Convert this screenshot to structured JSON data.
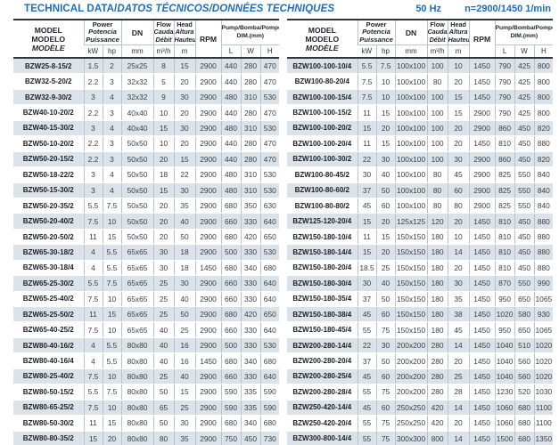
{
  "page": {
    "title_main": "TECHNICAL DATA/",
    "title_rest": "DATOS TÉCNICOS/DONNÉES TECHNIQUES",
    "frequency": "50 Hz",
    "speed": "n=2900/1450 1/min"
  },
  "colors": {
    "accent_blue": "#1f6db6",
    "row_shade": "#dbe2e8",
    "border_dark": "#2e3640",
    "border_light": "#b9c3cd"
  },
  "table_header": {
    "model_line1": "MODEL",
    "model_line2": "MODELO",
    "model_line3": "MODÈLE",
    "power_line1": "Power",
    "power_line2": "Potencia",
    "power_line3": "Puissance",
    "dn": "DN",
    "flow_line1": "Flow",
    "flow_line2": "Caudal",
    "flow_line3": "Débit",
    "head_line1": "Head",
    "head_line2": "Altura",
    "head_line3": "Hauteur",
    "rpm": "RPM",
    "dim_line1": "Pump/Bomba/Pompe",
    "dim_line2": "DIM.(mm)",
    "unit_kw": "kW",
    "unit_hp": "hp",
    "unit_dn": "mm",
    "unit_flow": "m³/h",
    "unit_head": "m",
    "unit_l": "L",
    "unit_w": "W",
    "unit_h": "H"
  },
  "left_table": {
    "rows": [
      [
        "BZW25-8-15/2",
        "1.5",
        "2",
        "25x25",
        "8",
        "15",
        "2900",
        "440",
        "280",
        "470"
      ],
      [
        "BZW32-5-20/2",
        "2.2",
        "3",
        "32x32",
        "5",
        "20",
        "2900",
        "440",
        "280",
        "470"
      ],
      [
        "BZW32-9-30/2",
        "3",
        "4",
        "32x32",
        "9",
        "30",
        "2900",
        "480",
        "310",
        "530"
      ],
      [
        "BZW40-10-20/2",
        "2.2",
        "3",
        "40x40",
        "10",
        "20",
        "2900",
        "440",
        "280",
        "470"
      ],
      [
        "BZW40-15-30/2",
        "3",
        "4",
        "40x40",
        "15",
        "30",
        "2900",
        "480",
        "310",
        "530"
      ],
      [
        "BZW50-10-20/2",
        "2.2",
        "3",
        "50x50",
        "10",
        "20",
        "2900",
        "440",
        "280",
        "470"
      ],
      [
        "BZW50-20-15/2",
        "2.2",
        "3",
        "50x50",
        "20",
        "15",
        "2900",
        "440",
        "280",
        "470"
      ],
      [
        "BZW50-18-22/2",
        "3",
        "4",
        "50x50",
        "18",
        "22",
        "2900",
        "480",
        "310",
        "530"
      ],
      [
        "BZW50-15-30/2",
        "3",
        "4",
        "50x50",
        "15",
        "30",
        "2900",
        "480",
        "310",
        "530"
      ],
      [
        "BZW50-20-35/2",
        "5.5",
        "7.5",
        "50x50",
        "20",
        "35",
        "2900",
        "680",
        "350",
        "630"
      ],
      [
        "BZW50-20-40/2",
        "7.5",
        "10",
        "50x50",
        "20",
        "40",
        "2900",
        "660",
        "330",
        "640"
      ],
      [
        "BZW50-20-50/2",
        "11",
        "15",
        "50x50",
        "20",
        "50",
        "2900",
        "680",
        "420",
        "650"
      ],
      [
        "BZW65-30-18/2",
        "4",
        "5.5",
        "65x65",
        "30",
        "18",
        "2900",
        "500",
        "330",
        "530"
      ],
      [
        "BZW65-30-18/4",
        "4",
        "5.5",
        "65x65",
        "30",
        "18",
        "1450",
        "680",
        "340",
        "680"
      ],
      [
        "BZW65-25-30/2",
        "5.5",
        "7.5",
        "65x65",
        "25",
        "30",
        "2900",
        "660",
        "330",
        "640"
      ],
      [
        "BZW65-25-40/2",
        "7.5",
        "10",
        "65x65",
        "25",
        "40",
        "2900",
        "660",
        "330",
        "640"
      ],
      [
        "BZW65-25-50/2",
        "11",
        "15",
        "65x65",
        "25",
        "50",
        "2900",
        "680",
        "420",
        "650"
      ],
      [
        "BZW65-40-25/2",
        "7.5",
        "10",
        "65x65",
        "40",
        "25",
        "2900",
        "660",
        "330",
        "640"
      ],
      [
        "BZW80-40-16/2",
        "4",
        "5.5",
        "80x80",
        "40",
        "16",
        "2900",
        "500",
        "330",
        "530"
      ],
      [
        "BZW80-40-16/4",
        "4",
        "5.5",
        "80x80",
        "40",
        "16",
        "1450",
        "680",
        "340",
        "680"
      ],
      [
        "BZW80-25-40/2",
        "7.5",
        "10",
        "80x80",
        "25",
        "40",
        "2900",
        "660",
        "330",
        "640"
      ],
      [
        "BZW80-50-15/2",
        "5.5",
        "7.5",
        "80x80",
        "50",
        "15",
        "2900",
        "590",
        "335",
        "590"
      ],
      [
        "BZW80-65-25/2",
        "7.5",
        "10",
        "80x80",
        "65",
        "25",
        "2900",
        "590",
        "335",
        "590"
      ],
      [
        "BZW80-50-30/2",
        "11",
        "15",
        "80x80",
        "50",
        "30",
        "2900",
        "680",
        "340",
        "680"
      ],
      [
        "BZW80-80-35/2",
        "15",
        "20",
        "80x80",
        "80",
        "35",
        "2900",
        "750",
        "450",
        "730"
      ],
      [
        "BZW80-50-60/2",
        "22",
        "30",
        "80x80",
        "50",
        "60",
        "2900",
        "720",
        "430",
        "700"
      ]
    ]
  },
  "right_table": {
    "rows": [
      [
        "BZW100-100-10/4",
        "5.5",
        "7.5",
        "100x100",
        "100",
        "10",
        "1450",
        "790",
        "425",
        "800"
      ],
      [
        "BZW100-80-20/4",
        "7.5",
        "10",
        "100x100",
        "80",
        "20",
        "1450",
        "790",
        "425",
        "800"
      ],
      [
        "BZW100-100-15/4",
        "7.5",
        "10",
        "100x100",
        "100",
        "15",
        "1450",
        "790",
        "425",
        "800"
      ],
      [
        "BZW100-100-15/2",
        "11",
        "15",
        "100x100",
        "100",
        "15",
        "2900",
        "790",
        "425",
        "800"
      ],
      [
        "BZW100-100-20/2",
        "15",
        "20",
        "100x100",
        "100",
        "20",
        "2900",
        "860",
        "450",
        "820"
      ],
      [
        "BZW100-100-20/4",
        "11",
        "15",
        "100x100",
        "100",
        "20",
        "1450",
        "810",
        "450",
        "880"
      ],
      [
        "BZW100-100-30/2",
        "22",
        "30",
        "100x100",
        "100",
        "30",
        "2900",
        "860",
        "450",
        "820"
      ],
      [
        "BZW100-80-45/2",
        "30",
        "40",
        "100x100",
        "80",
        "45",
        "2900",
        "825",
        "550",
        "840"
      ],
      [
        "BZW100-80-60/2",
        "37",
        "50",
        "100x100",
        "80",
        "60",
        "2900",
        "825",
        "550",
        "840"
      ],
      [
        "BZW100-80-80/2",
        "45",
        "60",
        "100x100",
        "80",
        "80",
        "2900",
        "825",
        "550",
        "840"
      ],
      [
        "BZW125-120-20/4",
        "15",
        "20",
        "125x125",
        "120",
        "20",
        "1450",
        "810",
        "450",
        "880"
      ],
      [
        "BZW150-180-10/4",
        "11",
        "15",
        "150x150",
        "180",
        "10",
        "1450",
        "810",
        "450",
        "880"
      ],
      [
        "BZW150-180-14/4",
        "15",
        "20",
        "150x150",
        "180",
        "14",
        "1450",
        "810",
        "450",
        "880"
      ],
      [
        "BZW150-180-20/4",
        "18.5",
        "25",
        "150x150",
        "180",
        "20",
        "1450",
        "810",
        "450",
        "880"
      ],
      [
        "BZW150-180-30/4",
        "30",
        "40",
        "150x150",
        "180",
        "30",
        "1450",
        "870",
        "550",
        "990"
      ],
      [
        "BZW150-180-35/4",
        "37",
        "50",
        "150x150",
        "180",
        "35",
        "1450",
        "950",
        "650",
        "1065"
      ],
      [
        "BZW150-180-38/4",
        "45",
        "60",
        "150x150",
        "180",
        "38",
        "1450",
        "1020",
        "580",
        "930"
      ],
      [
        "BZW150-180-45/4",
        "55",
        "75",
        "150x150",
        "180",
        "45",
        "1450",
        "950",
        "650",
        "1065"
      ],
      [
        "BZW200-280-14/4",
        "22",
        "30",
        "200x200",
        "280",
        "14",
        "1450",
        "1040",
        "510",
        "1020"
      ],
      [
        "BZW200-280-20/4",
        "37",
        "50",
        "200x200",
        "280",
        "20",
        "1450",
        "1040",
        "560",
        "1020"
      ],
      [
        "BZW200-280-25/4",
        "45",
        "60",
        "200x200",
        "280",
        "25",
        "1450",
        "1040",
        "560",
        "1020"
      ],
      [
        "BZW200-280-28/4",
        "55",
        "75",
        "200x200",
        "280",
        "28",
        "1450",
        "1230",
        "520",
        "1030"
      ],
      [
        "BZW250-420-14/4",
        "45",
        "60",
        "250x250",
        "420",
        "14",
        "1450",
        "1060",
        "680",
        "1100"
      ],
      [
        "BZW250-420-20/4",
        "55",
        "75",
        "250x250",
        "420",
        "20",
        "1450",
        "1060",
        "680",
        "1100"
      ],
      [
        "BZW300-800-14/4",
        "55",
        "75",
        "300x300",
        "800",
        "14",
        "1450",
        "1500",
        "680",
        "1350"
      ],
      [
        "BZW300-800-20/4",
        "75",
        "100",
        "300x300",
        "800",
        "20",
        "1450",
        "1500",
        "680",
        "1350"
      ]
    ]
  }
}
